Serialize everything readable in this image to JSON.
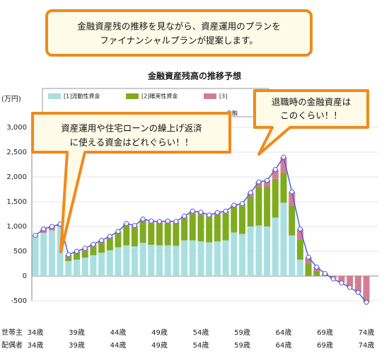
{
  "callouts": [
    {
      "lines": [
        "金融資産残の推移を見ながら、資産運用のプランを",
        "ファイナンシャルプランが提案します。"
      ]
    },
    {
      "lines": [
        "資産運用や住宅ローンの繰上げ返済",
        "に使える資金はどれぐらい！！"
      ]
    },
    {
      "lines": [
        "退職時の金融資産は",
        "このくらい！！"
      ]
    }
  ],
  "chart_data": {
    "type": "bar",
    "stacked": true,
    "title": "金融資産残高の推移予想",
    "y_unit": "(万円)",
    "row_labels": [
      "世帯主",
      "配偶者"
    ],
    "categories": [
      "34歳",
      null,
      null,
      null,
      null,
      "39歳",
      null,
      null,
      null,
      null,
      "44歳",
      null,
      null,
      null,
      null,
      "49歳",
      null,
      null,
      null,
      null,
      "54歳",
      null,
      null,
      null,
      null,
      "59歳",
      null,
      null,
      null,
      null,
      "64歳",
      null,
      null,
      null,
      null,
      "69歳",
      null,
      null,
      null,
      null,
      "74歳"
    ],
    "spouse_categories": [
      "34歳",
      null,
      null,
      null,
      null,
      "39歳",
      null,
      null,
      null,
      null,
      "44歳",
      null,
      null,
      null,
      null,
      "49歳",
      null,
      null,
      null,
      null,
      "54歳",
      null,
      null,
      null,
      null,
      "59歳",
      null,
      null,
      null,
      null,
      "64歳",
      null,
      null,
      null,
      null,
      "69歳",
      null,
      null,
      null,
      null,
      "74歳"
    ],
    "series": [
      {
        "name": "[1]流動性資金",
        "color": "#a9dfe0",
        "values": [
          800,
          870,
          920,
          1000,
          300,
          330,
          370,
          420,
          470,
          520,
          580,
          620,
          600,
          670,
          630,
          620,
          620,
          610,
          720,
          720,
          700,
          680,
          700,
          720,
          880,
          850,
          1000,
          1020,
          1000,
          1180,
          1480,
          820,
          330,
          0,
          0,
          0,
          0,
          0,
          0,
          0,
          0
        ]
      },
      {
        "name": "[2]確実性資金",
        "color": "#7fab1f",
        "values": [
          0,
          0,
          0,
          0,
          80,
          120,
          140,
          170,
          200,
          230,
          270,
          390,
          370,
          430,
          430,
          430,
          440,
          440,
          440,
          540,
          540,
          500,
          530,
          540,
          500,
          560,
          600,
          780,
          800,
          780,
          600,
          600,
          400,
          250,
          100,
          0,
          0,
          0,
          0,
          0,
          0
        ]
      },
      {
        "name": "[3]",
        "color": "#d27d93",
        "values": [
          20,
          80,
          80,
          50,
          50,
          50,
          50,
          50,
          50,
          50,
          50,
          50,
          50,
          50,
          50,
          50,
          50,
          50,
          50,
          50,
          50,
          50,
          50,
          50,
          50,
          50,
          80,
          100,
          130,
          190,
          320,
          280,
          220,
          130,
          80,
          50,
          -60,
          -140,
          -230,
          -330,
          -530
        ]
      },
      {
        "name": "金融",
        "type": "line",
        "color": "#4b5fd6",
        "values": [
          820,
          950,
          1000,
          1050,
          430,
          500,
          560,
          640,
          720,
          800,
          900,
          1060,
          1020,
          1150,
          1110,
          1100,
          1110,
          1100,
          1210,
          1310,
          1290,
          1230,
          1280,
          1310,
          1430,
          1460,
          1680,
          1900,
          1930,
          2150,
          2400,
          1700,
          950,
          380,
          180,
          50,
          -60,
          -140,
          -230,
          -330,
          -530
        ]
      }
    ],
    "ylim": [
      -500,
      3000
    ],
    "yticks": [
      -500,
      0,
      500,
      {
        "value": 1000,
        "label": "1,000"
      },
      {
        "value": 1500,
        "label": "1,500"
      },
      {
        "value": 2000,
        "label": "2,000"
      },
      {
        "value": 2500,
        "label": "2,500"
      },
      {
        "value": 3000,
        "label": "3,000"
      }
    ],
    "grid": true
  }
}
